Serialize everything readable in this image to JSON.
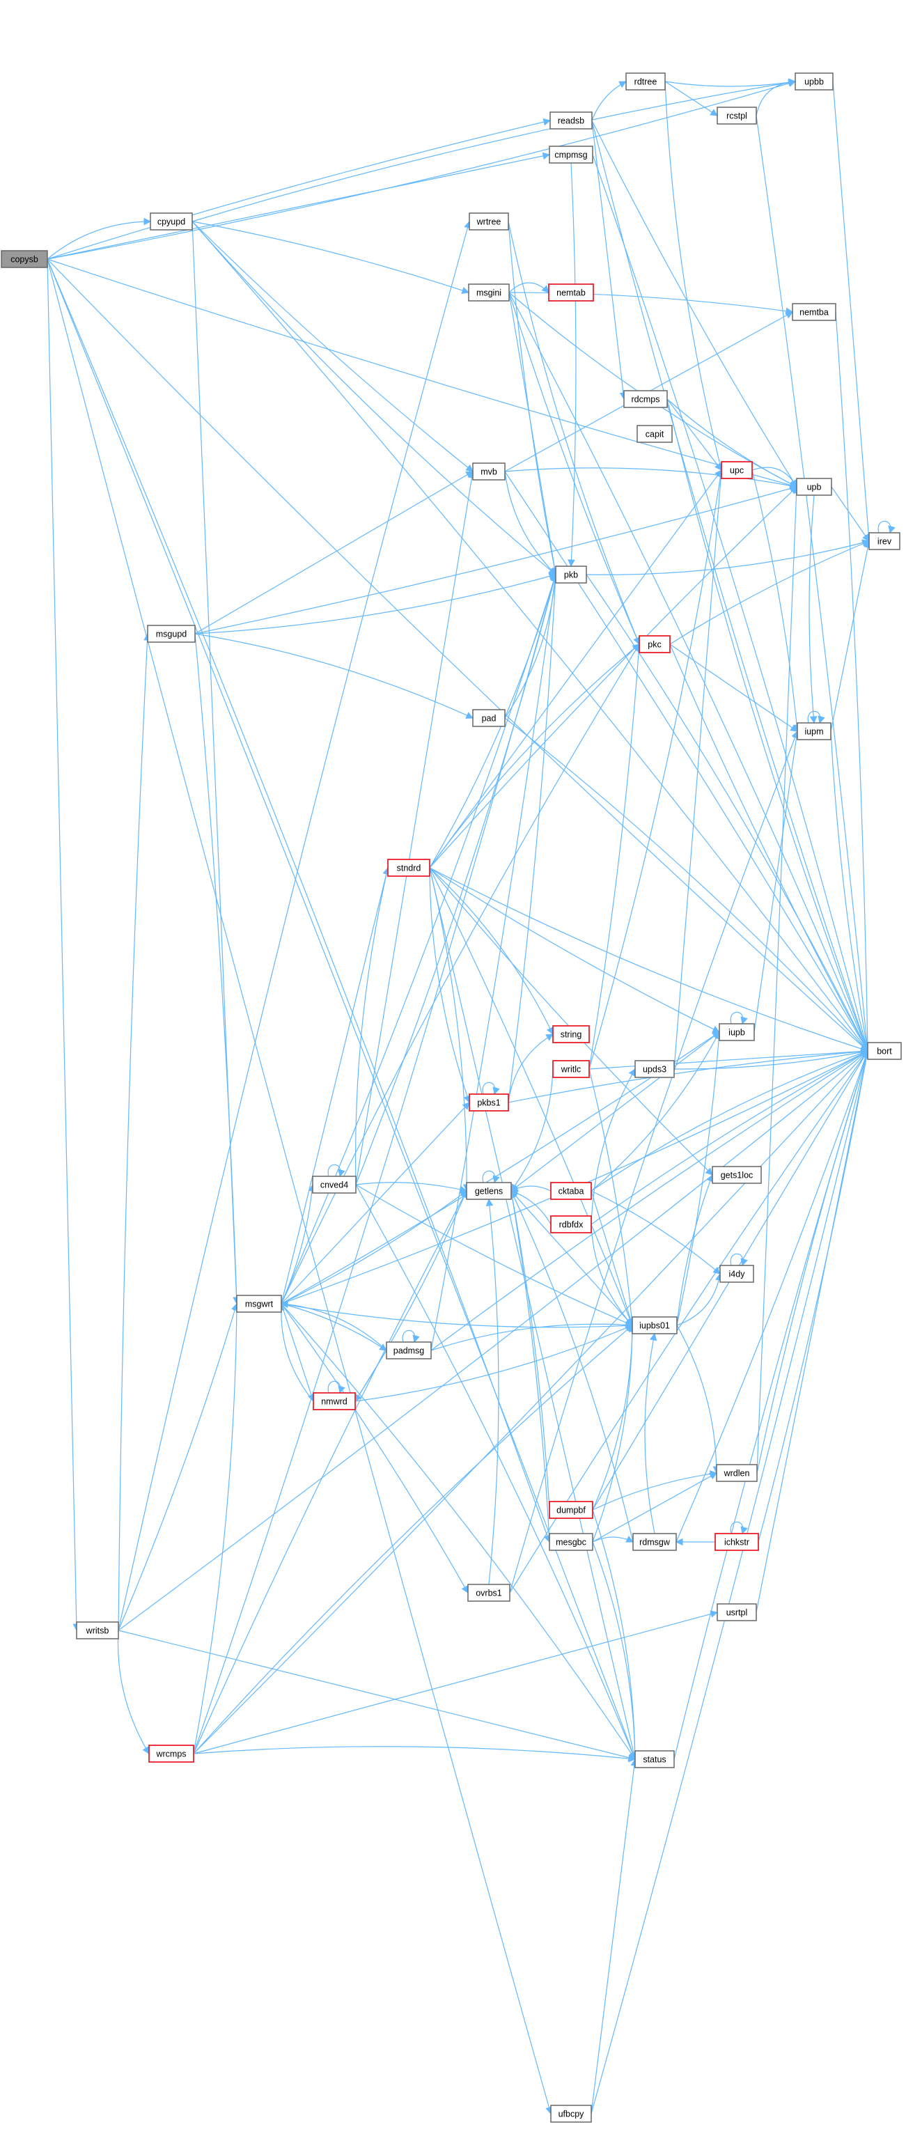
{
  "colors": {
    "edge": "#63b8ff",
    "node_border": "#666666",
    "highlight_border": "#e8202a",
    "root_fill": "#999999",
    "node_fill": "#ffffff"
  },
  "nodes": [
    {
      "id": "copysb",
      "label": "copysb",
      "style": "root"
    },
    {
      "id": "cpyupd",
      "label": "cpyupd",
      "style": "normal"
    },
    {
      "id": "readsb",
      "label": "readsb",
      "style": "normal"
    },
    {
      "id": "cmpmsg",
      "label": "cmpmsg",
      "style": "normal"
    },
    {
      "id": "rdtree",
      "label": "rdtree",
      "style": "normal"
    },
    {
      "id": "rcstpl",
      "label": "rcstpl",
      "style": "normal"
    },
    {
      "id": "upbb",
      "label": "upbb",
      "style": "normal"
    },
    {
      "id": "wrtree",
      "label": "wrtree",
      "style": "normal"
    },
    {
      "id": "msgini",
      "label": "msgini",
      "style": "normal"
    },
    {
      "id": "nemtab",
      "label": "nemtab",
      "style": "highlight"
    },
    {
      "id": "nemtba",
      "label": "nemtba",
      "style": "normal"
    },
    {
      "id": "rdcmps",
      "label": "rdcmps",
      "style": "normal"
    },
    {
      "id": "capit",
      "label": "capit",
      "style": "normal"
    },
    {
      "id": "upc",
      "label": "upc",
      "style": "highlight"
    },
    {
      "id": "upb",
      "label": "upb",
      "style": "normal"
    },
    {
      "id": "mvb",
      "label": "mvb",
      "style": "normal"
    },
    {
      "id": "irev",
      "label": "irev",
      "style": "normal"
    },
    {
      "id": "pkb",
      "label": "pkb",
      "style": "normal"
    },
    {
      "id": "pkc",
      "label": "pkc",
      "style": "highlight"
    },
    {
      "id": "msgupd",
      "label": "msgupd",
      "style": "normal"
    },
    {
      "id": "pad",
      "label": "pad",
      "style": "normal"
    },
    {
      "id": "iupm",
      "label": "iupm",
      "style": "normal"
    },
    {
      "id": "stndrd",
      "label": "stndrd",
      "style": "highlight"
    },
    {
      "id": "iupb",
      "label": "iupb",
      "style": "normal"
    },
    {
      "id": "string",
      "label": "string",
      "style": "highlight"
    },
    {
      "id": "writlc",
      "label": "writlc",
      "style": "highlight"
    },
    {
      "id": "pkbs1",
      "label": "pkbs1",
      "style": "highlight"
    },
    {
      "id": "upds3",
      "label": "upds3",
      "style": "normal"
    },
    {
      "id": "bort",
      "label": "bort",
      "style": "normal"
    },
    {
      "id": "cnved4",
      "label": "cnved4",
      "style": "normal"
    },
    {
      "id": "getlens",
      "label": "getlens",
      "style": "normal"
    },
    {
      "id": "cktaba",
      "label": "cktaba",
      "style": "highlight"
    },
    {
      "id": "gets1loc",
      "label": "gets1loc",
      "style": "normal"
    },
    {
      "id": "rdbfdx",
      "label": "rdbfdx",
      "style": "highlight"
    },
    {
      "id": "msgwrt",
      "label": "msgwrt",
      "style": "normal"
    },
    {
      "id": "i4dy",
      "label": "i4dy",
      "style": "normal"
    },
    {
      "id": "padmsg",
      "label": "padmsg",
      "style": "normal"
    },
    {
      "id": "iupbs01",
      "label": "iupbs01",
      "style": "normal"
    },
    {
      "id": "nmwrd",
      "label": "nmwrd",
      "style": "highlight"
    },
    {
      "id": "wrdlen",
      "label": "wrdlen",
      "style": "normal"
    },
    {
      "id": "dumpbf",
      "label": "dumpbf",
      "style": "highlight"
    },
    {
      "id": "mesgbc",
      "label": "mesgbc",
      "style": "normal"
    },
    {
      "id": "rdmsgw",
      "label": "rdmsgw",
      "style": "normal"
    },
    {
      "id": "ichkstr",
      "label": "ichkstr",
      "style": "highlight"
    },
    {
      "id": "ovrbs1",
      "label": "ovrbs1",
      "style": "normal"
    },
    {
      "id": "usrtpl",
      "label": "usrtpl",
      "style": "normal"
    },
    {
      "id": "writsb",
      "label": "writsb",
      "style": "normal"
    },
    {
      "id": "wrcmps",
      "label": "wrcmps",
      "style": "highlight"
    },
    {
      "id": "status",
      "label": "status",
      "style": "normal"
    },
    {
      "id": "ufbcpy",
      "label": "ufbcpy",
      "style": "normal"
    }
  ],
  "edges": [
    [
      "copysb",
      "cpyupd"
    ],
    [
      "copysb",
      "readsb"
    ],
    [
      "copysb",
      "cmpmsg"
    ],
    [
      "copysb",
      "upb"
    ],
    [
      "copysb",
      "bort"
    ],
    [
      "copysb",
      "mesgbc"
    ],
    [
      "copysb",
      "status"
    ],
    [
      "copysb",
      "writsb"
    ],
    [
      "copysb",
      "ufbcpy"
    ],
    [
      "copysb",
      "upbb"
    ],
    [
      "cpyupd",
      "bort"
    ],
    [
      "cpyupd",
      "msgini"
    ],
    [
      "cpyupd",
      "msgwrt"
    ],
    [
      "cpyupd",
      "mvb"
    ],
    [
      "cpyupd",
      "pkb"
    ],
    [
      "cpyupd",
      "upbb"
    ],
    [
      "readsb",
      "rdtree"
    ],
    [
      "readsb",
      "rdcmps"
    ],
    [
      "readsb",
      "upb"
    ],
    [
      "readsb",
      "bort"
    ],
    [
      "cmpmsg",
      "bort"
    ],
    [
      "cmpmsg",
      "pkb"
    ],
    [
      "rdtree",
      "rcstpl"
    ],
    [
      "rdtree",
      "upbb"
    ],
    [
      "rdtree",
      "upc"
    ],
    [
      "rcstpl",
      "upbb"
    ],
    [
      "rcstpl",
      "bort"
    ],
    [
      "upbb",
      "irev"
    ],
    [
      "wrtree",
      "pkb"
    ],
    [
      "wrtree",
      "pkc"
    ],
    [
      "msgini",
      "nemtab"
    ],
    [
      "msgini",
      "nemtba"
    ],
    [
      "msgini",
      "pkb"
    ],
    [
      "msgini",
      "pkc"
    ],
    [
      "msgini",
      "upb"
    ],
    [
      "msgini",
      "bort"
    ],
    [
      "nemtba",
      "bort"
    ],
    [
      "rdcmps",
      "upc"
    ],
    [
      "rdcmps",
      "upb"
    ],
    [
      "rdcmps",
      "bort"
    ],
    [
      "upc",
      "upb"
    ],
    [
      "upc",
      "iupm"
    ],
    [
      "upb",
      "irev"
    ],
    [
      "upb",
      "iupm"
    ],
    [
      "mvb",
      "pkb"
    ],
    [
      "mvb",
      "upb"
    ],
    [
      "mvb",
      "bort"
    ],
    [
      "mvb",
      "nemtba"
    ],
    [
      "irev",
      "irev"
    ],
    [
      "pkb",
      "irev"
    ],
    [
      "pkb",
      "bort"
    ],
    [
      "pkc",
      "irev"
    ],
    [
      "pkc",
      "iupm"
    ],
    [
      "pkc",
      "bort"
    ],
    [
      "msgupd",
      "pkb"
    ],
    [
      "msgupd",
      "pad"
    ],
    [
      "msgupd",
      "msgwrt"
    ],
    [
      "msgupd",
      "mvb"
    ],
    [
      "msgupd",
      "upb"
    ],
    [
      "pad",
      "pkb"
    ],
    [
      "pad",
      "bort"
    ],
    [
      "iupm",
      "iupm"
    ],
    [
      "iupm",
      "irev"
    ],
    [
      "iupm",
      "bort"
    ],
    [
      "stndrd",
      "pkb"
    ],
    [
      "stndrd",
      "pkc"
    ],
    [
      "stndrd",
      "upb"
    ],
    [
      "stndrd",
      "upc"
    ],
    [
      "stndrd",
      "iupb"
    ],
    [
      "stndrd",
      "bort"
    ],
    [
      "stndrd",
      "getlens"
    ],
    [
      "stndrd",
      "iupbs01"
    ],
    [
      "stndrd",
      "status"
    ],
    [
      "stndrd",
      "gets1loc"
    ],
    [
      "stndrd",
      "pkbs1"
    ],
    [
      "stndrd",
      "string"
    ],
    [
      "iupb",
      "iupb"
    ],
    [
      "iupb",
      "iupm"
    ],
    [
      "writlc",
      "pkc"
    ],
    [
      "writlc",
      "upc"
    ],
    [
      "writlc",
      "getlens"
    ],
    [
      "writlc",
      "iupbs01"
    ],
    [
      "writlc",
      "bort"
    ],
    [
      "pkbs1",
      "pkb"
    ],
    [
      "pkbs1",
      "pkbs1"
    ],
    [
      "pkbs1",
      "string"
    ],
    [
      "pkbs1",
      "bort"
    ],
    [
      "upds3",
      "upc"
    ],
    [
      "upds3",
      "bort"
    ],
    [
      "cnved4",
      "cnved4"
    ],
    [
      "cnved4",
      "stndrd"
    ],
    [
      "cnved4",
      "getlens"
    ],
    [
      "cnved4",
      "mvb"
    ],
    [
      "cnved4",
      "iupbs01"
    ],
    [
      "cnved4",
      "pkb"
    ],
    [
      "cnved4",
      "status"
    ],
    [
      "getlens",
      "getlens"
    ],
    [
      "getlens",
      "iupb"
    ],
    [
      "cktaba",
      "getlens"
    ],
    [
      "cktaba",
      "iupb"
    ],
    [
      "cktaba",
      "bort"
    ],
    [
      "cktaba",
      "i4dy"
    ],
    [
      "cktaba",
      "iupbs01"
    ],
    [
      "rdbfdx",
      "getlens"
    ],
    [
      "rdbfdx",
      "iupbs01"
    ],
    [
      "rdbfdx",
      "upds3"
    ],
    [
      "rdbfdx",
      "bort"
    ],
    [
      "msgwrt",
      "stndrd"
    ],
    [
      "msgwrt",
      "cnved4"
    ],
    [
      "msgwrt",
      "pkb"
    ],
    [
      "msgwrt",
      "pkc"
    ],
    [
      "msgwrt",
      "padmsg"
    ],
    [
      "msgwrt",
      "nmwrd"
    ],
    [
      "msgwrt",
      "getlens"
    ],
    [
      "msgwrt",
      "iupbs01"
    ],
    [
      "msgwrt",
      "status"
    ],
    [
      "msgwrt",
      "ovrbs1"
    ],
    [
      "msgwrt",
      "pkbs1"
    ],
    [
      "msgwrt",
      "iupb"
    ],
    [
      "msgwrt",
      "bort"
    ],
    [
      "i4dy",
      "i4dy"
    ],
    [
      "padmsg",
      "padmsg"
    ],
    [
      "padmsg",
      "nmwrd"
    ],
    [
      "padmsg",
      "pkb"
    ],
    [
      "padmsg",
      "msgwrt"
    ],
    [
      "padmsg",
      "iupbs01"
    ],
    [
      "padmsg",
      "bort"
    ],
    [
      "iupbs01",
      "getlens"
    ],
    [
      "iupbs01",
      "iupb"
    ],
    [
      "iupbs01",
      "i4dy"
    ],
    [
      "iupbs01",
      "wrdlen"
    ],
    [
      "iupbs01",
      "gets1loc"
    ],
    [
      "nmwrd",
      "nmwrd"
    ],
    [
      "nmwrd",
      "getlens"
    ],
    [
      "nmwrd",
      "iupbs01"
    ],
    [
      "nmwrd",
      "msgwrt"
    ],
    [
      "wrdlen",
      "bort"
    ],
    [
      "wrdlen",
      "upb"
    ],
    [
      "dumpbf",
      "getlens"
    ],
    [
      "dumpbf",
      "iupbs01"
    ],
    [
      "dumpbf",
      "status"
    ],
    [
      "dumpbf",
      "wrdlen"
    ],
    [
      "dumpbf",
      "bort"
    ],
    [
      "mesgbc",
      "getlens"
    ],
    [
      "mesgbc",
      "iupbs01"
    ],
    [
      "mesgbc",
      "status"
    ],
    [
      "mesgbc",
      "rdmsgw"
    ],
    [
      "mesgbc",
      "wrdlen"
    ],
    [
      "rdmsgw",
      "bort"
    ],
    [
      "rdmsgw",
      "getlens"
    ],
    [
      "rdmsgw",
      "iupbs01"
    ],
    [
      "ichkstr",
      "ichkstr"
    ],
    [
      "ichkstr",
      "rdmsgw"
    ],
    [
      "ichkstr",
      "bort"
    ],
    [
      "ovrbs1",
      "getlens"
    ],
    [
      "ovrbs1",
      "iupm"
    ],
    [
      "ovrbs1",
      "bort"
    ],
    [
      "usrtpl",
      "bort"
    ],
    [
      "writsb",
      "msgwrt"
    ],
    [
      "writsb",
      "wrcmps"
    ],
    [
      "writsb",
      "wrtree"
    ],
    [
      "writsb",
      "msgupd"
    ],
    [
      "writsb",
      "status"
    ],
    [
      "writsb",
      "bort"
    ],
    [
      "wrcmps",
      "msgwrt"
    ],
    [
      "wrcmps",
      "status"
    ],
    [
      "wrcmps",
      "getlens"
    ],
    [
      "wrcmps",
      "usrtpl"
    ],
    [
      "wrcmps",
      "bort"
    ],
    [
      "wrcmps",
      "pkb"
    ],
    [
      "wrcmps",
      "iupbs01"
    ],
    [
      "status",
      "bort"
    ],
    [
      "ufbcpy",
      "status"
    ],
    [
      "ufbcpy",
      "bort"
    ]
  ]
}
